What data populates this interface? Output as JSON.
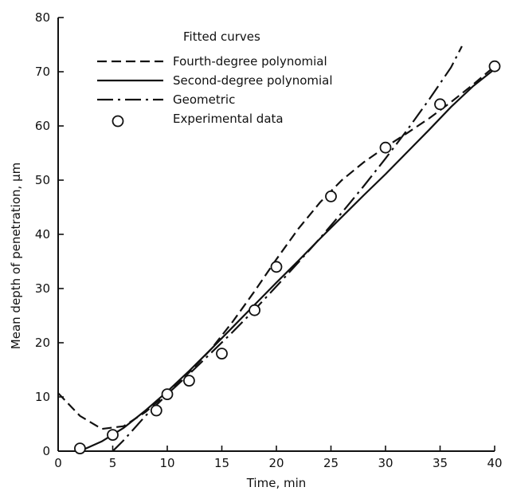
{
  "chart_data": {
    "type": "line",
    "xlabel": "Time, min",
    "ylabel": "Mean depth of penetration, μm",
    "xlim": [
      0,
      40
    ],
    "ylim": [
      0,
      80
    ],
    "x_ticks": [
      0,
      5,
      10,
      15,
      20,
      25,
      30,
      35,
      40
    ],
    "y_ticks": [
      0,
      10,
      20,
      30,
      40,
      50,
      60,
      70,
      80
    ],
    "grid": false,
    "legend": {
      "title": "Fitted curves",
      "placement": "top-left",
      "entries": [
        {
          "label": "Fourth-degree polynomial",
          "style": "dashed"
        },
        {
          "label": "Second-degree polynomial",
          "style": "solid"
        },
        {
          "label": "Geometric",
          "style": "dash-dot"
        },
        {
          "label": "Experimental data",
          "style": "circle-marker"
        }
      ]
    },
    "series": [
      {
        "name": "Experimental data",
        "kind": "scatter",
        "x": [
          2,
          5,
          9,
          10,
          12,
          15,
          18,
          20,
          25,
          30,
          35,
          40
        ],
        "y": [
          0.5,
          3,
          7.5,
          10.5,
          13,
          18,
          26,
          34,
          47,
          56,
          64,
          71
        ]
      },
      {
        "name": "Fourth-degree polynomial",
        "kind": "line",
        "style": "dashed",
        "x": [
          0,
          2,
          4,
          6,
          8,
          10,
          12,
          14,
          16,
          18,
          20,
          22,
          24,
          26,
          28,
          30,
          32,
          34,
          36,
          38,
          40
        ],
        "y": [
          10.7,
          6.5,
          4.1,
          4.6,
          7.2,
          10.7,
          14.5,
          18.8,
          23.9,
          29.5,
          35.4,
          41.0,
          45.9,
          50.0,
          53.3,
          56.1,
          58.7,
          61.4,
          64.4,
          67.6,
          71.0
        ]
      },
      {
        "name": "Second-degree polynomial",
        "kind": "line",
        "style": "solid",
        "x": [
          0,
          2,
          4,
          6,
          8,
          10,
          12,
          14,
          16,
          18,
          20,
          22,
          24,
          26,
          28,
          30,
          32,
          34,
          36,
          38,
          40
        ],
        "y": [
          -1.3,
          0.0,
          1.8,
          4.3,
          7.5,
          11.0,
          14.8,
          18.8,
          22.9,
          27.0,
          31.1,
          35.1,
          39.2,
          43.2,
          47.2,
          51.1,
          55.2,
          59.3,
          63.5,
          67.3,
          70.5
        ]
      },
      {
        "name": "Geometric",
        "kind": "line",
        "style": "dash-dot",
        "x": [
          5,
          6,
          8,
          10,
          12,
          14,
          16,
          18,
          20,
          22,
          24,
          26,
          28,
          30,
          32,
          34,
          36,
          37
        ],
        "y": [
          0,
          2.0,
          6.5,
          10.5,
          14.2,
          18.1,
          22.0,
          26.1,
          30.4,
          34.8,
          39.3,
          44.0,
          48.9,
          54.0,
          59.3,
          64.9,
          70.8,
          74.7
        ]
      }
    ]
  }
}
